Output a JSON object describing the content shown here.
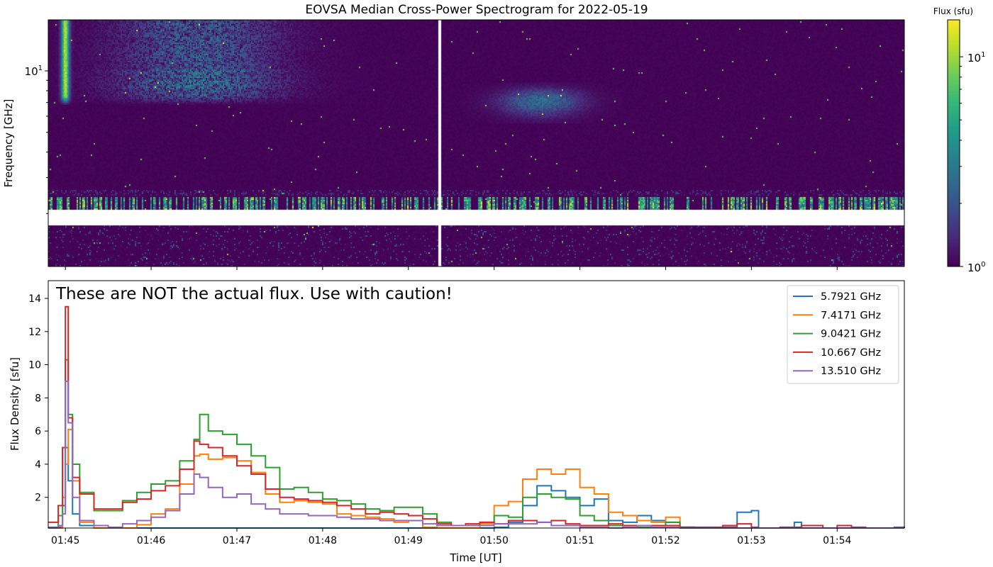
{
  "chart_data": [
    {
      "type": "heatmap",
      "title": "EOVSA Median Cross-Power Spectrogram for 2022-05-19",
      "ylabel": "Frequency [GHz]",
      "yscale": "log",
      "ylim": [
        1.1,
        17.8
      ],
      "yticks": [
        {
          "value": 10,
          "base": "10",
          "exp": "1"
        }
      ],
      "xticks": [
        "01:45",
        "01:46",
        "01:47",
        "01:48",
        "01:49",
        "01:50",
        "01:51",
        "01:52",
        "01:53",
        "01:54"
      ],
      "xtick_labels_shown": false,
      "colormap": "viridis",
      "colorbar": {
        "label": "Flux (sfu)",
        "scale": "log",
        "clim": [
          1,
          15
        ],
        "ticks": [
          {
            "value": 1,
            "base": "10",
            "exp": "0"
          },
          {
            "value": 10,
            "base": "10",
            "exp": "1"
          }
        ]
      }
    },
    {
      "type": "line",
      "annotation": "These are NOT the actual flux. Use with caution!",
      "xlabel": "Time [UT]",
      "ylabel": "Flux Density [sfu]",
      "xlim": [
        "01:44:48",
        "01:54:47"
      ],
      "ylim": [
        0.15,
        15.07
      ],
      "yticks": [
        "2",
        "4",
        "6",
        "8",
        "10",
        "12",
        "14"
      ],
      "xticks": [
        "01:45",
        "01:46",
        "01:47",
        "01:48",
        "01:49",
        "01:50",
        "01:51",
        "01:52",
        "01:53",
        "01:54"
      ],
      "legend_position": "top-right",
      "drawstyle": "steps",
      "x": [
        "01:44:48",
        "01:44:55",
        "01:44:58",
        "01:45:00",
        "01:45:02",
        "01:45:05",
        "01:45:10",
        "01:45:20",
        "01:45:30",
        "01:45:40",
        "01:45:50",
        "01:46:00",
        "01:46:10",
        "01:46:20",
        "01:46:30",
        "01:46:34",
        "01:46:40",
        "01:46:50",
        "01:47:00",
        "01:47:10",
        "01:47:20",
        "01:47:30",
        "01:47:40",
        "01:47:50",
        "01:48:00",
        "01:48:10",
        "01:48:20",
        "01:48:30",
        "01:48:40",
        "01:48:50",
        "01:49:00",
        "01:49:10",
        "01:49:20",
        "01:49:30",
        "01:49:40",
        "01:49:50",
        "01:50:00",
        "01:50:10",
        "01:50:20",
        "01:50:30",
        "01:50:40",
        "01:50:50",
        "01:51:00",
        "01:51:10",
        "01:51:20",
        "01:51:30",
        "01:51:40",
        "01:51:50",
        "01:52:00",
        "01:52:10",
        "01:52:20",
        "01:52:40",
        "01:52:50",
        "01:53:00",
        "01:53:05",
        "01:53:20",
        "01:53:30",
        "01:53:35",
        "01:53:50",
        "01:54:00",
        "01:54:10",
        "01:54:20",
        "01:54:40",
        "01:54:47"
      ],
      "series": [
        {
          "name": "5.7921 GHz",
          "color": "#1f77b4",
          "values": [
            0.1,
            0.2,
            1.5,
            5,
            3,
            1,
            0.3,
            0.15,
            0.15,
            0.15,
            0.15,
            0.15,
            0.15,
            0.15,
            0.15,
            0.15,
            0.15,
            0.15,
            0.15,
            0.15,
            0.15,
            0.15,
            0.15,
            0.15,
            0.15,
            0.15,
            0.15,
            0.15,
            0.15,
            0.15,
            0.15,
            0.15,
            0.15,
            0.15,
            0.15,
            0.15,
            0.2,
            0.5,
            1.5,
            2.7,
            2.4,
            2.0,
            1.5,
            1.9,
            0.6,
            0.5,
            0.9,
            0.6,
            0.5,
            0.2,
            0.15,
            0.2,
            1.1,
            1.2,
            0.1,
            0.15,
            0.5,
            0.1,
            0.15,
            0.15,
            0.15,
            0.15,
            0.2,
            0.15
          ]
        },
        {
          "name": "7.4171 GHz",
          "color": "#ff7f0e",
          "values": [
            0.1,
            0.1,
            2,
            4,
            6.1,
            3,
            0.5,
            0.1,
            0.1,
            0.1,
            0.35,
            1.0,
            1.3,
            2.8,
            4.5,
            4.6,
            4.3,
            4.4,
            4.2,
            3.5,
            2.2,
            1.7,
            1.8,
            1.7,
            1.6,
            1.0,
            0.9,
            0.8,
            0.7,
            0.5,
            0.6,
            0.2,
            0.1,
            0.1,
            0.1,
            0.4,
            1.5,
            1.75,
            3.1,
            3.7,
            3.4,
            3.7,
            2.6,
            2.2,
            1.1,
            0.9,
            0.6,
            0.5,
            0.8,
            0.2,
            0.1,
            0.1,
            0.1,
            0.1,
            0.1,
            0.1,
            0.1,
            0.1,
            0.1,
            0.1,
            0.1,
            0.1,
            0.1,
            0.1
          ]
        },
        {
          "name": "9.0421 GHz",
          "color": "#2ca02c",
          "values": [
            0.2,
            0.9,
            5,
            10.3,
            7,
            4.0,
            2.3,
            1.2,
            1.2,
            1.8,
            2.3,
            2.8,
            3.0,
            4.2,
            5.5,
            7.0,
            6.0,
            5.8,
            5.2,
            4.5,
            3.8,
            2.5,
            2.6,
            2.3,
            1.9,
            1.8,
            1.6,
            1.3,
            1.2,
            1.4,
            1.4,
            1.0,
            0.5,
            0.3,
            0.3,
            0.5,
            0.9,
            0.8,
            2.0,
            2.2,
            2.0,
            1.9,
            0.9,
            0.6,
            0.3,
            0.3,
            0.2,
            0.3,
            0.5,
            0.2,
            0.1,
            0.1,
            0.1,
            0.1,
            0.1,
            0.1,
            0.1,
            0.1,
            0.1,
            0.1,
            0.1,
            0.1,
            0.1,
            0.1
          ]
        },
        {
          "name": "10.667 GHz",
          "color": "#d62728",
          "values": [
            0.5,
            1.5,
            5,
            13.5,
            6.8,
            3.2,
            2.2,
            1.3,
            1.3,
            1.7,
            1.9,
            2.4,
            2.7,
            3.7,
            5.4,
            5.2,
            5.0,
            4.5,
            3.9,
            3.4,
            2.5,
            2.0,
            1.9,
            1.8,
            1.7,
            1.5,
            1.3,
            1.0,
            1.1,
            1.0,
            0.9,
            0.7,
            0.4,
            0.3,
            0.4,
            0.5,
            0.4,
            0.6,
            0.6,
            0.5,
            0.6,
            0.4,
            0.3,
            0.3,
            0.4,
            0.3,
            0.3,
            0.3,
            0.3,
            0.2,
            0.2,
            0.3,
            0.4,
            0.2,
            0.1,
            0.2,
            0.2,
            0.3,
            0.1,
            0.3,
            0.2,
            0.1,
            0.1,
            0.1
          ]
        },
        {
          "name": "13.510 GHz",
          "color": "#9467bd",
          "values": [
            0.1,
            0.3,
            1,
            9,
            6.5,
            2.0,
            0.6,
            0.3,
            0.2,
            0.4,
            0.6,
            0.8,
            1.2,
            2.2,
            3.4,
            3.2,
            2.6,
            2.0,
            2.2,
            1.6,
            1.3,
            1.0,
            1.0,
            0.9,
            0.9,
            0.8,
            0.7,
            0.7,
            0.6,
            0.6,
            0.6,
            0.4,
            0.3,
            0.3,
            0.3,
            0.3,
            0.4,
            0.4,
            0.4,
            0.5,
            0.3,
            0.3,
            0.2,
            0.2,
            0.1,
            0.2,
            0.3,
            0.2,
            0.2,
            0.1,
            0.1,
            0.1,
            0.1,
            0.1,
            0.1,
            0.1,
            0.1,
            0.1,
            0.1,
            0.1,
            0.1,
            0.1,
            0.1,
            0.1
          ]
        }
      ]
    }
  ]
}
